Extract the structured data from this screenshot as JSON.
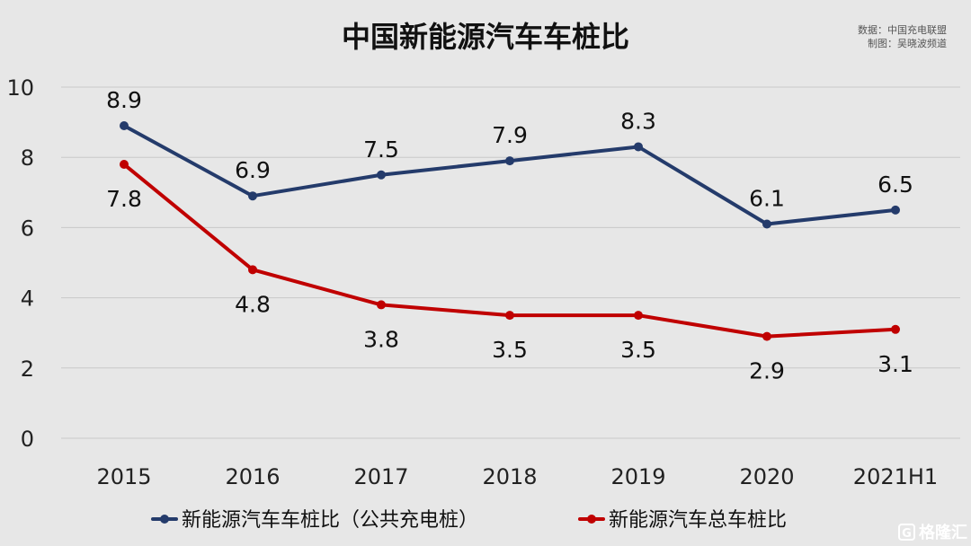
{
  "chart_data": {
    "type": "line",
    "title": "中国新能源汽车车桩比",
    "source_lines": [
      "数据：中国充电联盟",
      "制图：吴晓波频道"
    ],
    "categories": [
      "2015",
      "2016",
      "2017",
      "2018",
      "2019",
      "2020",
      "2021H1"
    ],
    "ylim": [
      0,
      10
    ],
    "yticks": [
      0,
      2,
      4,
      6,
      8,
      10
    ],
    "grid": true,
    "legend_position": "bottom",
    "series": [
      {
        "name": "新能源汽车车桩比（公共充电桩）",
        "color": "#243b6b",
        "values": [
          8.9,
          6.9,
          7.5,
          7.9,
          8.3,
          6.1,
          6.5
        ],
        "label_position": "above"
      },
      {
        "name": "新能源汽车总车桩比",
        "color": "#c00000",
        "values": [
          7.8,
          4.8,
          3.8,
          3.5,
          3.5,
          2.9,
          3.1
        ],
        "label_position": "below"
      }
    ]
  },
  "watermark": {
    "icon": "g-logo-icon",
    "text": "格隆汇"
  }
}
